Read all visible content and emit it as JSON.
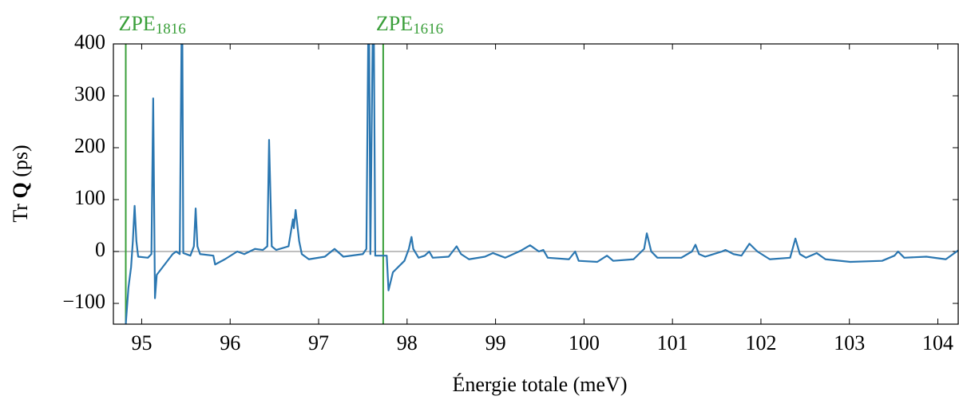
{
  "chart_data": {
    "type": "line",
    "x_label": "Énergie totale (meV)",
    "y_label": [
      "Tr ",
      "Q",
      " (ps)"
    ],
    "x": [
      94.82,
      94.85,
      94.88,
      94.9,
      94.92,
      94.94,
      94.96,
      95.07,
      95.11,
      95.13,
      95.15,
      95.17,
      95.26,
      95.35,
      95.39,
      95.43,
      95.45,
      95.46,
      95.47,
      95.55,
      95.59,
      95.61,
      95.63,
      95.66,
      95.81,
      95.83,
      95.94,
      96.08,
      96.16,
      96.28,
      96.37,
      96.42,
      96.44,
      96.47,
      96.52,
      96.66,
      96.71,
      96.72,
      96.74,
      96.78,
      96.81,
      96.89,
      97.07,
      97.18,
      97.28,
      97.5,
      97.54,
      97.56,
      97.572,
      97.585,
      97.61,
      97.625,
      97.64,
      97.77,
      97.79,
      97.84,
      97.97,
      98.02,
      98.05,
      98.07,
      98.13,
      98.2,
      98.25,
      98.29,
      98.47,
      98.56,
      98.61,
      98.7,
      98.88,
      98.97,
      99.11,
      99.29,
      99.39,
      99.49,
      99.54,
      99.59,
      99.83,
      99.9,
      99.94,
      100.15,
      100.26,
      100.33,
      100.56,
      100.68,
      100.71,
      100.76,
      100.83,
      101.1,
      101.22,
      101.26,
      101.3,
      101.37,
      101.56,
      101.6,
      101.69,
      101.78,
      101.87,
      101.96,
      102.1,
      102.33,
      102.39,
      102.44,
      102.51,
      102.63,
      102.73,
      103.01,
      103.37,
      103.51,
      103.55,
      103.62,
      103.87,
      104.09,
      104.23
    ],
    "series": [
      {
        "color": "#2b77b1",
        "values": [
          -140,
          -70,
          -30,
          20,
          88,
          20,
          -10,
          -12,
          -5,
          295,
          -90,
          -45,
          -25,
          -5,
          0,
          -5,
          400,
          400,
          -3,
          -8,
          10,
          83,
          10,
          -5,
          -8,
          -25,
          -15,
          0,
          -5,
          5,
          3,
          10,
          215,
          10,
          3,
          10,
          62,
          45,
          80,
          20,
          -5,
          -15,
          -10,
          5,
          -10,
          -5,
          5,
          400,
          400,
          -5,
          400,
          400,
          -8,
          -8,
          -75,
          -40,
          -18,
          5,
          28,
          5,
          -12,
          -8,
          0,
          -12,
          -10,
          10,
          -5,
          -15,
          -10,
          -3,
          -12,
          2,
          12,
          0,
          3,
          -12,
          -15,
          0,
          -18,
          -20,
          -8,
          -18,
          -15,
          5,
          35,
          0,
          -12,
          -12,
          0,
          13,
          -5,
          -10,
          0,
          3,
          -5,
          -8,
          15,
          0,
          -15,
          -12,
          25,
          -5,
          -12,
          -3,
          -15,
          -20,
          -18,
          -8,
          0,
          -12,
          -10,
          -15,
          2
        ]
      }
    ],
    "annotations": [
      {
        "x": 94.82,
        "label": "ZPE",
        "subscript": "1816",
        "color": "#3a9f3a"
      },
      {
        "x": 97.73,
        "label": "ZPE",
        "subscript": "1616",
        "color": "#3a9f3a"
      }
    ],
    "xlim": [
      94.68,
      104.23
    ],
    "xticks": [
      95,
      96,
      97,
      98,
      99,
      100,
      101,
      102,
      103,
      104
    ],
    "ylim": [
      -140,
      400
    ],
    "yticks": [
      {
        "value": -100,
        "label": "−100"
      },
      0,
      100,
      200,
      300,
      400
    ],
    "grid": false
  }
}
